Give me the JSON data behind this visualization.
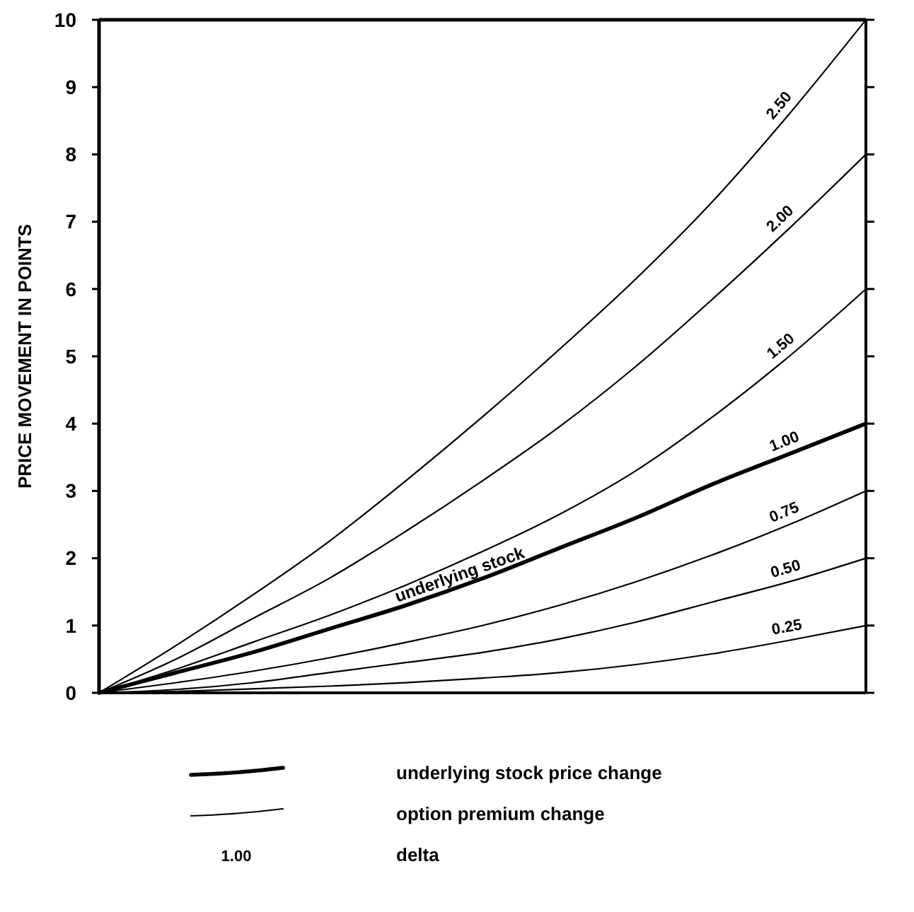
{
  "chart_data": {
    "type": "line",
    "ylabel": "PRICE MOVEMENT IN POINTS",
    "categories": [
      null,
      null,
      null,
      null,
      null,
      null,
      null,
      null,
      null,
      null,
      null
    ],
    "ylim": [
      0,
      10
    ],
    "yticks": [
      0,
      1,
      2,
      3,
      4,
      5,
      6,
      7,
      8,
      9,
      10
    ],
    "grid": false,
    "legend": "bottom",
    "marker": "none",
    "line_style": "solid",
    "series": [
      {
        "name": "2.50",
        "color": "#000000",
        "values": [
          0,
          0.7,
          1.45,
          2.25,
          3.15,
          4.1,
          5.1,
          6.15,
          7.3,
          8.6,
          10
        ]
      },
      {
        "name": "2.00",
        "color": "#000000",
        "values": [
          0,
          0.5,
          1.1,
          1.7,
          2.4,
          3.15,
          3.95,
          4.85,
          5.85,
          6.9,
          8
        ]
      },
      {
        "name": "1.50",
        "color": "#000000",
        "values": [
          0,
          0.35,
          0.75,
          1.15,
          1.6,
          2.1,
          2.65,
          3.3,
          4.1,
          5.0,
          6
        ]
      },
      {
        "name": "1.00",
        "color": "#000000",
        "values": [
          0,
          0.3,
          0.6,
          0.95,
          1.3,
          1.7,
          2.15,
          2.6,
          3.1,
          3.55,
          4
        ]
      },
      {
        "name": "0.75",
        "color": "#000000",
        "values": [
          0,
          0.15,
          0.32,
          0.52,
          0.75,
          1.0,
          1.3,
          1.65,
          2.05,
          2.5,
          3
        ]
      },
      {
        "name": "0.50",
        "color": "#000000",
        "values": [
          0,
          0.05,
          0.15,
          0.3,
          0.45,
          0.6,
          0.8,
          1.05,
          1.35,
          1.65,
          2
        ]
      },
      {
        "name": "0.25",
        "color": "#000000",
        "values": [
          0,
          0.02,
          0.06,
          0.1,
          0.15,
          0.22,
          0.3,
          0.42,
          0.58,
          0.78,
          1
        ]
      }
    ],
    "annotations": [
      {
        "text": "underlying stock",
        "y": 1.6
      },
      "underlying stock price change",
      "option premium change",
      "1.00",
      "delta"
    ]
  }
}
